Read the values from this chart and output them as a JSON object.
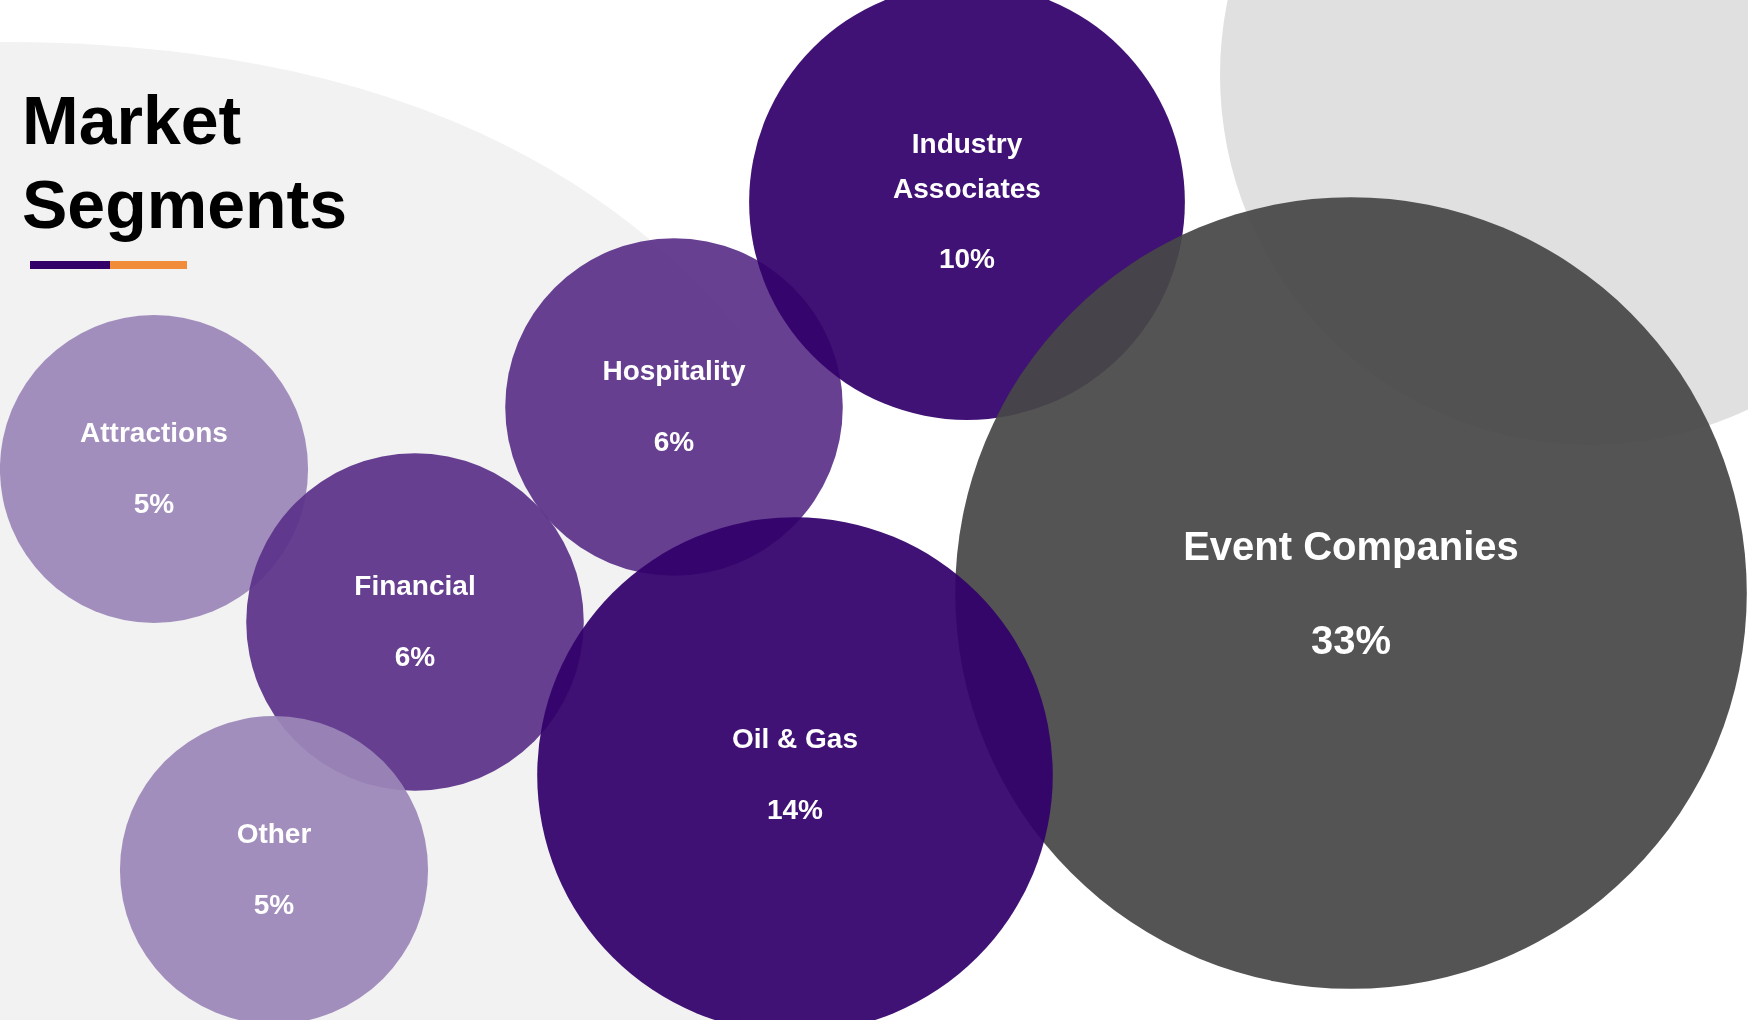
{
  "chart_data": {
    "type": "other",
    "title": "Market Segments",
    "categories": [
      "Attractions",
      "Financial",
      "Other",
      "Hospitality",
      "Industry Associates",
      "Event Companies",
      "Oil & Gas"
    ],
    "values": [
      5,
      6,
      5,
      6,
      10,
      33,
      14
    ],
    "value_labels": [
      "5%",
      "6%",
      "5%",
      "6%",
      "10%",
      "33%",
      "14%"
    ],
    "colors": [
      "#9b87b8",
      "#5b318a",
      "#9b87b8",
      "#5b318a",
      "#33006a",
      "#474747",
      "#33006a"
    ]
  }
}
